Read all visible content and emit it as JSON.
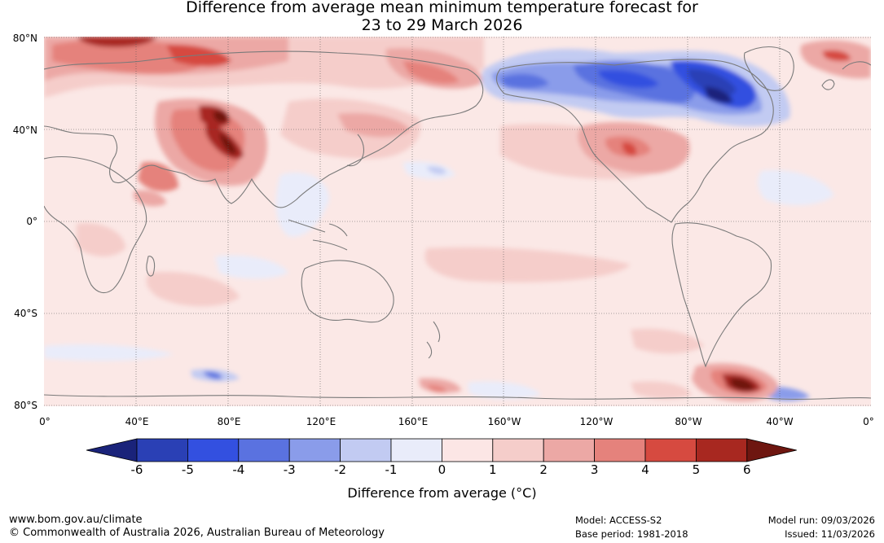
{
  "title": {
    "line1": "Difference from average mean minimum temperature forecast for",
    "line2": "23 to 29 March 2026"
  },
  "map": {
    "lat_labels": [
      "80°N",
      "40°N",
      "0°",
      "40°S",
      "80°S"
    ],
    "lon_labels": [
      "0°",
      "40°E",
      "80°E",
      "120°E",
      "160°E",
      "160°W",
      "120°W",
      "80°W",
      "40°W",
      "0°"
    ]
  },
  "colorbar": {
    "ticks": [
      "-6",
      "-5",
      "-4",
      "-3",
      "-2",
      "-1",
      "0",
      "1",
      "2",
      "3",
      "4",
      "5",
      "6"
    ],
    "colors": [
      "#1a237a",
      "#2a40b5",
      "#3350e0",
      "#5a72e0",
      "#8a9cea",
      "#c2cbf2",
      "#e9ecfa",
      "#fce6e5",
      "#f5cdca",
      "#eca8a5",
      "#e5827c",
      "#d64a40",
      "#a82820",
      "#6e1610"
    ],
    "label": "Difference from average (°C)"
  },
  "footer": {
    "url": "www.bom.gov.au/climate",
    "copyright": "© Commonwealth of Australia 2026, Australian Bureau of Meteorology",
    "model": "Model: ACCESS-S2",
    "base_period": "Base period: 1981-2018",
    "model_run": "Model run: 09/03/2026",
    "issued": "Issued: 11/03/2026"
  }
}
